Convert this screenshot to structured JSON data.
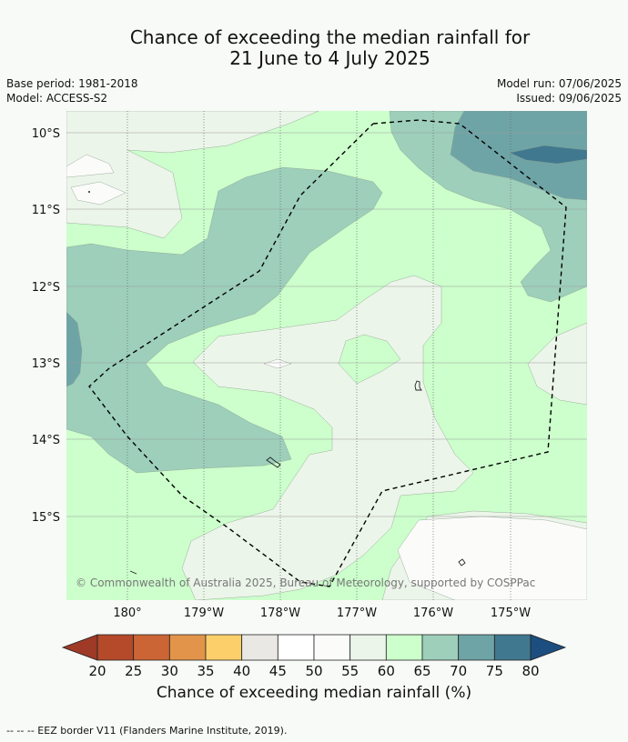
{
  "title_line1": "Chance of exceeding the median rainfall for",
  "title_line2": "21 June to 4 July 2025",
  "base_period": "Base period: 1981-2018",
  "model": "Model: ACCESS-S2",
  "model_run": "Model run: 07/06/2025",
  "issued": "Issued: 09/06/2025",
  "copyright": "© Commonwealth of Australia 2025, Bureau of Meteorology, supported by COSPPac",
  "lat_labels": [
    "10°S",
    "11°S",
    "12°S",
    "13°S",
    "14°S",
    "15°S"
  ],
  "lon_labels": [
    "180°",
    "179°W",
    "178°W",
    "177°W",
    "176°W",
    "175°W"
  ],
  "colorbar": {
    "ticks": [
      "20",
      "25",
      "30",
      "35",
      "40",
      "45",
      "50",
      "55",
      "60",
      "65",
      "70",
      "75",
      "80"
    ],
    "colors": [
      "#9e3a26",
      "#b44a2a",
      "#cc6535",
      "#e2954a",
      "#fdcf6b",
      "#e9e8e4",
      "#ffffff",
      "#fbfcfa",
      "#ecf5ea",
      "#ccffcc",
      "#9dcfbb",
      "#6ea4a6",
      "#40788f",
      "#1c4e80"
    ],
    "title": "Chance of exceeding median rainfall (%)"
  },
  "footnote": "--  --  -- EEZ border V11 (Flanders Marine Institute, 2019)."
}
